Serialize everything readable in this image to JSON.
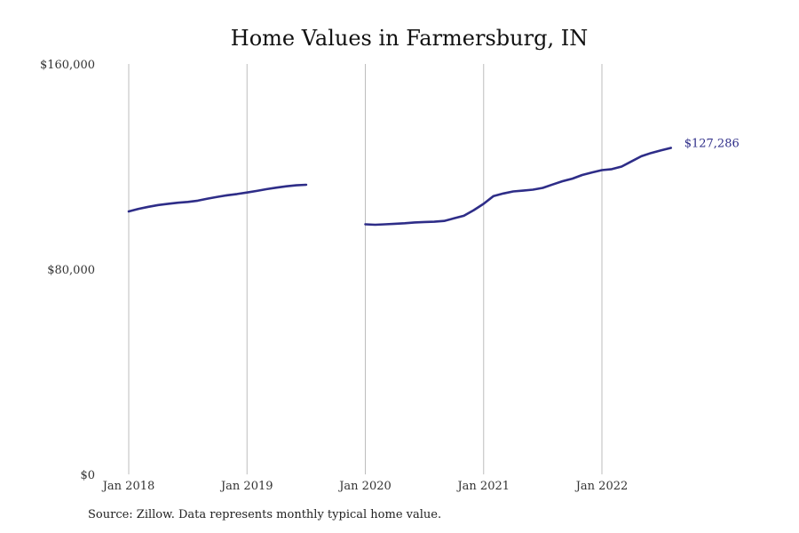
{
  "chart_data": {
    "type": "line",
    "title": "Home Values in Farmersburg, IN",
    "xlabel": "",
    "ylabel": "",
    "ylim": [
      0,
      160000
    ],
    "yticks": [
      {
        "value": 0,
        "label": "$0"
      },
      {
        "value": 80000,
        "label": "$80,000"
      },
      {
        "value": 160000,
        "label": "$160,000"
      }
    ],
    "xticks": [
      {
        "value": "2018-01",
        "label": "Jan 2018"
      },
      {
        "value": "2019-01",
        "label": "Jan 2019"
      },
      {
        "value": "2020-01",
        "label": "Jan 2020"
      },
      {
        "value": "2021-01",
        "label": "Jan 2021"
      },
      {
        "value": "2022-01",
        "label": "Jan 2022"
      }
    ],
    "vertical_gridlines": true,
    "line_color": "#2e2d88",
    "series": [
      {
        "segments": [
          [
            [
              "2018-01",
              102500
            ],
            [
              "2018-02",
              103500
            ],
            [
              "2018-03",
              104300
            ],
            [
              "2018-04",
              105000
            ],
            [
              "2018-05",
              105500
            ],
            [
              "2018-06",
              105900
            ],
            [
              "2018-07",
              106200
            ],
            [
              "2018-08",
              106700
            ],
            [
              "2018-09",
              107500
            ],
            [
              "2018-10",
              108200
            ],
            [
              "2018-11",
              108800
            ],
            [
              "2018-12",
              109300
            ],
            [
              "2019-01",
              109900
            ],
            [
              "2019-02",
              110500
            ],
            [
              "2019-03",
              111200
            ],
            [
              "2019-04",
              111800
            ],
            [
              "2019-05",
              112300
            ],
            [
              "2019-06",
              112700
            ],
            [
              "2019-07",
              112900
            ]
          ],
          [
            [
              "2020-01",
              97500
            ],
            [
              "2020-02",
              97300
            ],
            [
              "2020-03",
              97500
            ],
            [
              "2020-04",
              97700
            ],
            [
              "2020-05",
              97900
            ],
            [
              "2020-06",
              98200
            ],
            [
              "2020-07",
              98400
            ],
            [
              "2020-08",
              98500
            ],
            [
              "2020-09",
              98800
            ],
            [
              "2020-10",
              99800
            ],
            [
              "2020-11",
              100800
            ],
            [
              "2020-12",
              103000
            ],
            [
              "2021-01",
              105500
            ],
            [
              "2021-02",
              108500
            ],
            [
              "2021-03",
              109500
            ],
            [
              "2021-04",
              110300
            ],
            [
              "2021-05",
              110600
            ],
            [
              "2021-06",
              111000
            ],
            [
              "2021-07",
              111700
            ],
            [
              "2021-08",
              113000
            ],
            [
              "2021-09",
              114300
            ],
            [
              "2021-10",
              115300
            ],
            [
              "2021-11",
              116700
            ],
            [
              "2021-12",
              117700
            ],
            [
              "2022-01",
              118600
            ],
            [
              "2022-02",
              119000
            ],
            [
              "2022-03",
              120000
            ],
            [
              "2022-04",
              122000
            ],
            [
              "2022-05",
              124000
            ],
            [
              "2022-06",
              125300
            ],
            [
              "2022-07",
              126300
            ],
            [
              "2022-08",
              127286
            ]
          ]
        ]
      }
    ],
    "end_label": "$127,286"
  },
  "source": "Source: Zillow. Data represents monthly typical home value."
}
